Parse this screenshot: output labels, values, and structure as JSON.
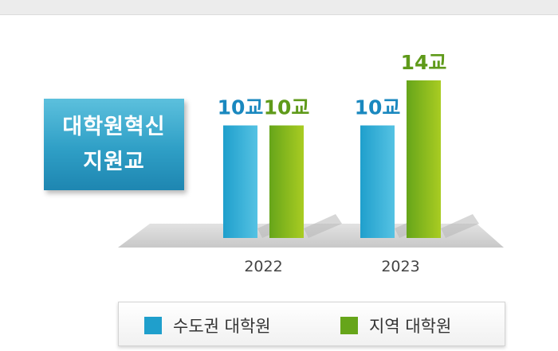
{
  "colors": {
    "capital": "#1f9fcc",
    "capital_light": "#55c2e3",
    "regional": "#66a51a",
    "regional_light": "#a9cc22",
    "capital_text": "#1a88bf",
    "regional_text": "#5f9a1a"
  },
  "badge": {
    "line1": "대학원혁신",
    "line2": "지원교"
  },
  "chart_data": {
    "type": "bar",
    "categories": [
      "2022",
      "2023"
    ],
    "series": [
      {
        "name": "수도권 대학원",
        "values": [
          10,
          10
        ],
        "labels": [
          "10교",
          "10교"
        ]
      },
      {
        "name": "지역 대학원",
        "values": [
          10,
          14
        ],
        "labels": [
          "10교",
          "14교"
        ]
      }
    ],
    "ylim": [
      0,
      14
    ],
    "legend_position": "bottom"
  }
}
